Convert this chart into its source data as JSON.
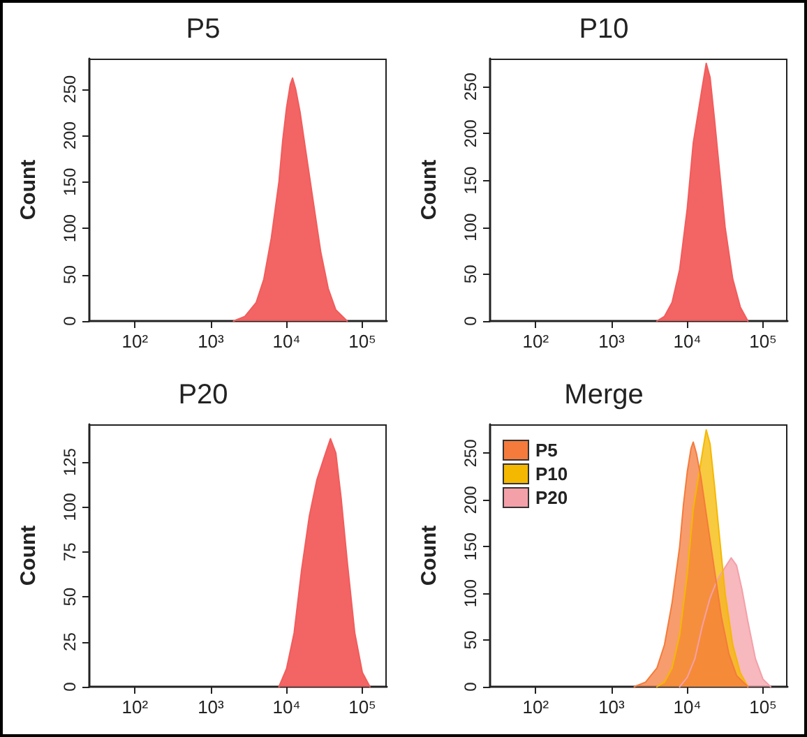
{
  "chart_data": [
    {
      "type": "area",
      "title": "P5",
      "ylabel": "Count",
      "log": "x",
      "grid": false,
      "legend": false,
      "marker": "none",
      "xlim": [
        25,
        210000
      ],
      "xticks": [
        {
          "value": 100,
          "label": "10²"
        },
        {
          "value": 1000,
          "label": "10³"
        },
        {
          "value": 10000,
          "label": "10⁴"
        },
        {
          "value": 100000,
          "label": "10⁵"
        }
      ],
      "ylim": [
        0,
        283
      ],
      "yticks": [
        0,
        50,
        100,
        150,
        200,
        250
      ],
      "series": [
        {
          "color": "#f25c5c",
          "x": [
            2000,
            2820,
            3980,
            5010,
            6310,
            7940,
            8910,
            10000,
            11200,
            12000,
            13200,
            15100,
            17800,
            22400,
            28200,
            35500,
            44700,
            63100
          ],
          "values": [
            0,
            5,
            20,
            45,
            90,
            150,
            195,
            230,
            255,
            262,
            250,
            225,
            185,
            130,
            75,
            35,
            12,
            0
          ]
        }
      ]
    },
    {
      "type": "area",
      "title": "P10",
      "ylabel": "Count",
      "log": "x",
      "grid": false,
      "legend": false,
      "marker": "none",
      "xlim": [
        25,
        210000
      ],
      "xticks": [
        {
          "value": 100,
          "label": "10²"
        },
        {
          "value": 1000,
          "label": "10³"
        },
        {
          "value": 10000,
          "label": "10⁴"
        },
        {
          "value": 100000,
          "label": "10⁵"
        }
      ],
      "ylim": [
        0,
        280
      ],
      "yticks": [
        0,
        50,
        100,
        150,
        200,
        250
      ],
      "series": [
        {
          "color": "#f25c5c",
          "x": [
            3980,
            5010,
            6310,
            7940,
            10000,
            12000,
            14100,
            15800,
            17800,
            20000,
            22900,
            26300,
            31600,
            39800,
            50100,
            63100
          ],
          "values": [
            0,
            5,
            20,
            55,
            120,
            190,
            225,
            250,
            275,
            260,
            215,
            165,
            100,
            45,
            15,
            0
          ]
        }
      ]
    },
    {
      "type": "area",
      "title": "P20",
      "ylabel": "Count",
      "log": "x",
      "grid": false,
      "legend": false,
      "marker": "none",
      "xlim": [
        25,
        210000
      ],
      "xticks": [
        {
          "value": 100,
          "label": "10²"
        },
        {
          "value": 1000,
          "label": "10³"
        },
        {
          "value": 10000,
          "label": "10⁴"
        },
        {
          "value": 100000,
          "label": "10⁵"
        }
      ],
      "ylim": [
        0,
        146
      ],
      "yticks": [
        0,
        25,
        50,
        75,
        100,
        125
      ],
      "series": [
        {
          "color": "#f25c5c",
          "x": [
            7940,
            10000,
            12600,
            15800,
            20000,
            25100,
            31600,
            38000,
            44700,
            52500,
            63100,
            79400,
            100000,
            126000
          ],
          "values": [
            0,
            10,
            30,
            65,
            95,
            115,
            128,
            138,
            130,
            105,
            70,
            30,
            8,
            0
          ]
        }
      ]
    },
    {
      "type": "area",
      "title": "Merge",
      "ylabel": "Count",
      "log": "x",
      "grid": false,
      "legend": "top left",
      "marker": "none",
      "xlim": [
        25,
        210000
      ],
      "xticks": [
        {
          "value": 100,
          "label": "10²"
        },
        {
          "value": 1000,
          "label": "10³"
        },
        {
          "value": 10000,
          "label": "10⁴"
        },
        {
          "value": 100000,
          "label": "10⁵"
        }
      ],
      "ylim": [
        0,
        281
      ],
      "yticks": [
        0,
        50,
        100,
        150,
        200,
        250
      ],
      "series": [
        {
          "name": "P20",
          "color": "#f4a0a8",
          "x": [
            7940,
            10000,
            12600,
            15800,
            20000,
            25100,
            31600,
            38000,
            44700,
            52500,
            63100,
            79400,
            100000,
            126000
          ],
          "values": [
            0,
            10,
            30,
            65,
            95,
            115,
            128,
            138,
            130,
            105,
            70,
            30,
            8,
            0
          ]
        },
        {
          "name": "P10",
          "color": "#f5b800",
          "x": [
            3980,
            5010,
            6310,
            7940,
            10000,
            12000,
            14100,
            15800,
            17800,
            20000,
            22900,
            26300,
            31600,
            39800,
            50100,
            63100
          ],
          "values": [
            0,
            5,
            20,
            55,
            120,
            190,
            225,
            250,
            275,
            260,
            215,
            165,
            100,
            45,
            15,
            0
          ]
        },
        {
          "name": "P5",
          "color": "#f47b3c",
          "x": [
            2000,
            2820,
            3980,
            5010,
            6310,
            7940,
            8910,
            10000,
            11200,
            12000,
            13200,
            15100,
            17800,
            22400,
            28200,
            35500,
            44700,
            63100
          ],
          "values": [
            0,
            5,
            20,
            45,
            90,
            150,
            195,
            230,
            255,
            262,
            250,
            225,
            185,
            130,
            75,
            35,
            12,
            0
          ]
        }
      ]
    }
  ]
}
